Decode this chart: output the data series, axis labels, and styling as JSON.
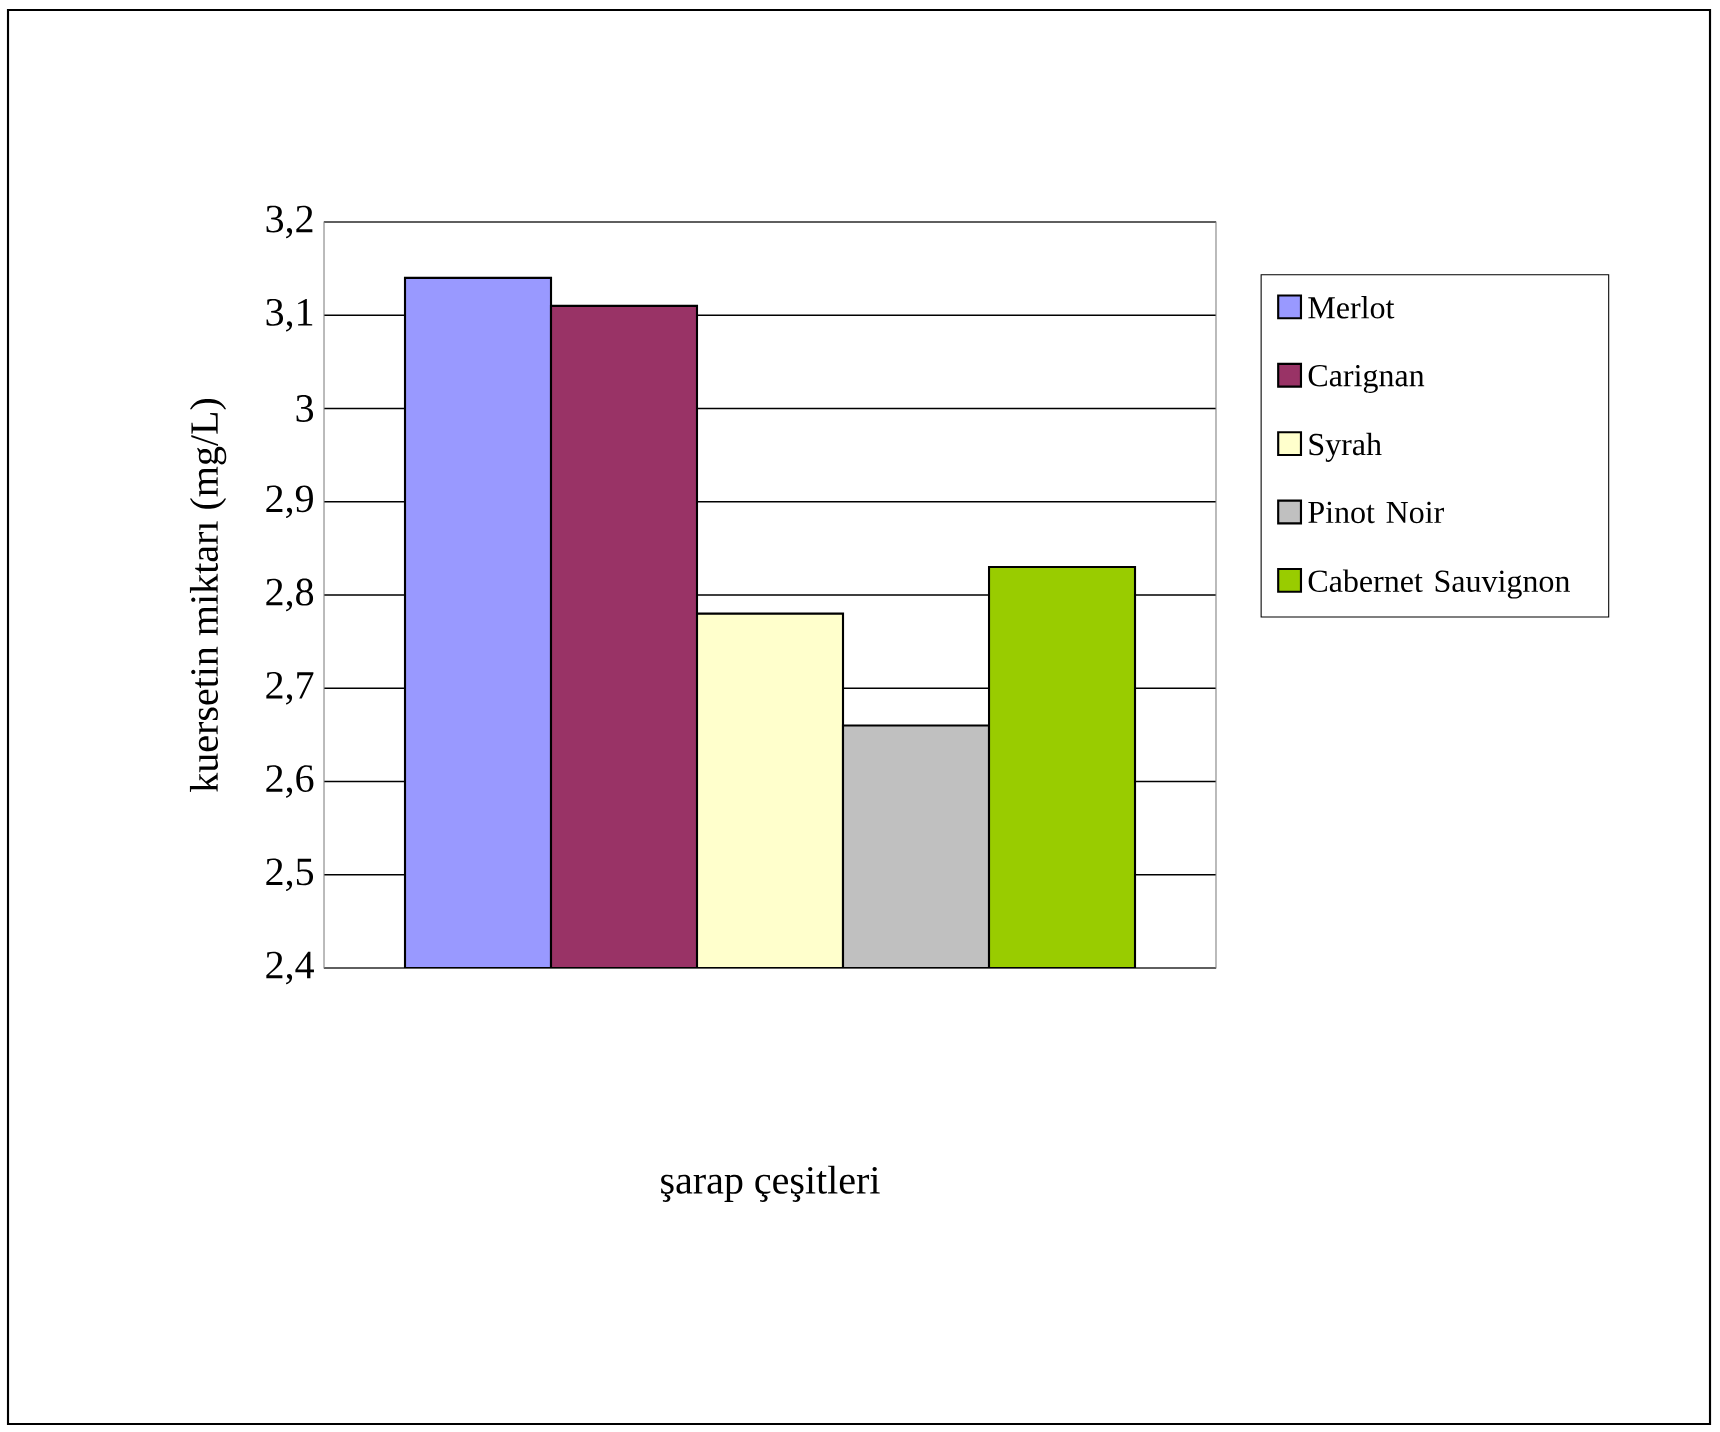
{
  "chart_data": {
    "type": "bar",
    "xlabel": "şarap çeşitleri",
    "ylabel": "kuersetin miktarı (mg/L)",
    "categories": [
      null
    ],
    "series": [
      {
        "name": "Merlot",
        "color": "#9999ff",
        "values": [
          3.14
        ]
      },
      {
        "name": "Carignan",
        "color": "#993366",
        "values": [
          3.11
        ]
      },
      {
        "name": "Syrah",
        "color": "#ffffcc",
        "values": [
          2.78
        ]
      },
      {
        "name": "Pinot Noir",
        "color": "#c0c0c0",
        "values": [
          2.66
        ]
      },
      {
        "name": "Cabernet Sauvignon",
        "color": "#99cc00",
        "values": [
          2.83
        ]
      }
    ],
    "ylim": [
      2.4,
      3.2
    ],
    "yticks": [
      {
        "value": 2.4,
        "label": "2,4"
      },
      {
        "value": 2.5,
        "label": "2,5"
      },
      {
        "value": 2.6,
        "label": "2,6"
      },
      {
        "value": 2.7,
        "label": "2,7"
      },
      {
        "value": 2.8,
        "label": "2,8"
      },
      {
        "value": 2.9,
        "label": "2,9"
      },
      {
        "value": 3,
        "label": "3"
      },
      {
        "value": 3.1,
        "label": "3,1"
      },
      {
        "value": 3.2,
        "label": "3,2"
      }
    ],
    "grid": "y",
    "legend": "right"
  }
}
